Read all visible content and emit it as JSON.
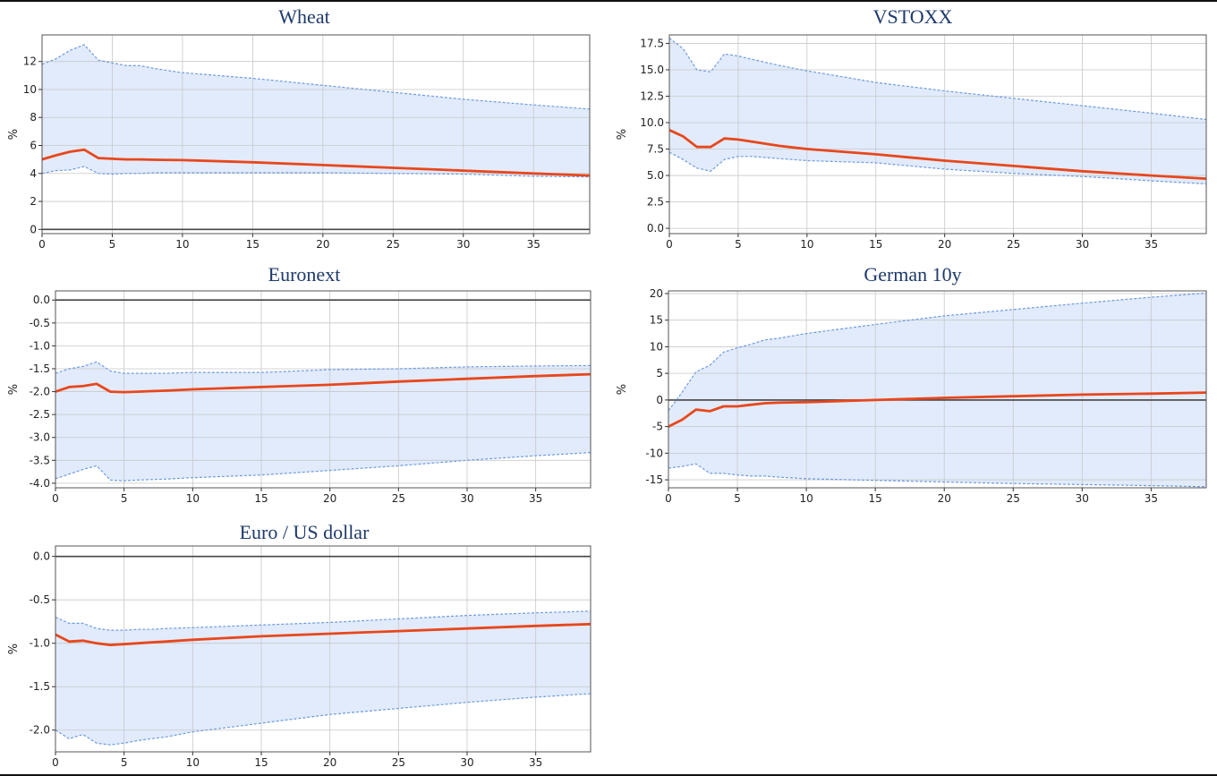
{
  "colors": {
    "line": "#e8471c",
    "band_fill": "#dce8fb",
    "band_edge": "#6f9be0",
    "grid": "#c8c8c8",
    "zero": "#444444",
    "title": "#1f3a6b"
  },
  "chart_data": [
    {
      "type": "area",
      "title": "Wheat",
      "ylabel": "%",
      "xlim": [
        0,
        39
      ],
      "ylim": [
        -0.3,
        13.9
      ],
      "xticks": [
        0,
        5,
        10,
        15,
        20,
        25,
        30,
        35
      ],
      "yticks": [
        0,
        2,
        4,
        6,
        8,
        10,
        12
      ],
      "ytick_labels": [
        "0",
        "2",
        "4",
        "6",
        "8",
        "10",
        "12"
      ],
      "zero_line": true,
      "grid": true,
      "x": [
        0,
        1,
        2,
        3,
        4,
        5,
        6,
        7,
        8,
        10,
        15,
        20,
        25,
        30,
        35,
        39
      ],
      "series": [
        {
          "role": "upper",
          "values": [
            11.8,
            12.2,
            12.8,
            13.2,
            12.1,
            11.9,
            11.7,
            11.7,
            11.5,
            11.2,
            10.8,
            10.3,
            9.8,
            9.3,
            8.9,
            8.6
          ]
        },
        {
          "role": "median",
          "values": [
            5.0,
            5.3,
            5.55,
            5.7,
            5.1,
            5.05,
            5.0,
            5.0,
            4.98,
            4.95,
            4.8,
            4.6,
            4.4,
            4.2,
            4.0,
            3.85
          ]
        },
        {
          "role": "lower",
          "values": [
            4.0,
            4.2,
            4.25,
            4.5,
            4.0,
            3.95,
            4.0,
            4.0,
            4.05,
            4.05,
            4.05,
            4.05,
            4.0,
            3.95,
            3.8,
            3.75
          ]
        }
      ]
    },
    {
      "type": "area",
      "title": "VSTOXX",
      "ylabel": "%",
      "xlim": [
        0,
        39
      ],
      "ylim": [
        -0.5,
        18.3
      ],
      "xticks": [
        0,
        5,
        10,
        15,
        20,
        25,
        30,
        35
      ],
      "yticks": [
        0,
        2.5,
        5,
        7.5,
        10,
        12.5,
        15,
        17.5
      ],
      "ytick_labels": [
        "0.0",
        "2.5",
        "5.0",
        "7.5",
        "10.0",
        "12.5",
        "15.0",
        "17.5"
      ],
      "zero_line": false,
      "grid": true,
      "x": [
        0,
        1,
        2,
        3,
        4,
        5,
        6,
        7,
        8,
        10,
        15,
        20,
        25,
        30,
        35,
        39
      ],
      "series": [
        {
          "role": "upper",
          "values": [
            18.0,
            17.0,
            15.0,
            14.8,
            16.5,
            16.3,
            16.0,
            15.7,
            15.4,
            14.9,
            13.8,
            13.0,
            12.3,
            11.6,
            10.9,
            10.3
          ]
        },
        {
          "role": "median",
          "values": [
            9.3,
            8.7,
            7.7,
            7.7,
            8.5,
            8.4,
            8.2,
            8.0,
            7.8,
            7.5,
            7.0,
            6.4,
            5.9,
            5.4,
            5.0,
            4.7
          ]
        },
        {
          "role": "lower",
          "values": [
            7.2,
            6.5,
            5.7,
            5.4,
            6.5,
            6.8,
            6.8,
            6.7,
            6.6,
            6.4,
            6.2,
            5.6,
            5.2,
            4.9,
            4.5,
            4.2
          ]
        }
      ]
    },
    {
      "type": "area",
      "title": "Euronext",
      "ylabel": "%",
      "xlim": [
        0,
        39
      ],
      "ylim": [
        -4.1,
        0.2
      ],
      "xticks": [
        0,
        5,
        10,
        15,
        20,
        25,
        30,
        35
      ],
      "yticks": [
        0,
        -0.5,
        -1,
        -1.5,
        -2,
        -2.5,
        -3,
        -3.5,
        -4
      ],
      "ytick_labels": [
        "0.0",
        "-0.5",
        "-1.0",
        "-1.5",
        "-2.0",
        "-2.5",
        "-3.0",
        "-3.5",
        "-4.0"
      ],
      "zero_line": true,
      "grid": true,
      "x": [
        0,
        1,
        2,
        3,
        4,
        5,
        6,
        7,
        8,
        10,
        15,
        20,
        25,
        30,
        35,
        39
      ],
      "series": [
        {
          "role": "upper",
          "values": [
            -1.6,
            -1.5,
            -1.45,
            -1.35,
            -1.55,
            -1.6,
            -1.6,
            -1.6,
            -1.6,
            -1.58,
            -1.58,
            -1.52,
            -1.5,
            -1.46,
            -1.44,
            -1.43
          ]
        },
        {
          "role": "median",
          "values": [
            -2.0,
            -1.9,
            -1.88,
            -1.83,
            -2.0,
            -2.01,
            -2.0,
            -1.99,
            -1.98,
            -1.95,
            -1.9,
            -1.85,
            -1.78,
            -1.72,
            -1.66,
            -1.62
          ]
        },
        {
          "role": "lower",
          "values": [
            -3.9,
            -3.8,
            -3.7,
            -3.62,
            -3.93,
            -3.95,
            -3.93,
            -3.92,
            -3.91,
            -3.88,
            -3.82,
            -3.72,
            -3.62,
            -3.5,
            -3.4,
            -3.33
          ]
        }
      ]
    },
    {
      "type": "area",
      "title": "German 10y",
      "ylabel": "%",
      "xlim": [
        0,
        39
      ],
      "ylim": [
        -16.5,
        20.5
      ],
      "xticks": [
        0,
        5,
        10,
        15,
        20,
        25,
        30,
        35
      ],
      "yticks": [
        -15,
        -10,
        -5,
        0,
        5,
        10,
        15,
        20
      ],
      "ytick_labels": [
        "-15",
        "-10",
        "-5",
        "0",
        "5",
        "10",
        "15",
        "20"
      ],
      "zero_line": true,
      "grid": true,
      "x": [
        0,
        1,
        2,
        3,
        4,
        5,
        6,
        7,
        8,
        10,
        15,
        20,
        25,
        30,
        35,
        39
      ],
      "series": [
        {
          "role": "upper",
          "values": [
            -2.0,
            1.5,
            5.3,
            6.5,
            9.0,
            9.8,
            10.5,
            11.3,
            11.6,
            12.5,
            14.2,
            15.8,
            17.0,
            18.2,
            19.3,
            20.1
          ]
        },
        {
          "role": "median",
          "values": [
            -5.0,
            -3.7,
            -1.8,
            -2.1,
            -1.2,
            -1.2,
            -0.9,
            -0.6,
            -0.5,
            -0.4,
            0.0,
            0.4,
            0.7,
            1.0,
            1.2,
            1.4
          ]
        },
        {
          "role": "lower",
          "values": [
            -12.8,
            -12.5,
            -12.0,
            -13.8,
            -13.8,
            -14.1,
            -14.3,
            -14.3,
            -14.5,
            -14.8,
            -15.1,
            -15.4,
            -15.7,
            -15.9,
            -16.1,
            -16.3
          ]
        }
      ]
    },
    {
      "type": "area",
      "title": "Euro / US dollar",
      "ylabel": "%",
      "xlim": [
        0,
        39
      ],
      "ylim": [
        -2.25,
        0.12
      ],
      "xticks": [
        0,
        5,
        10,
        15,
        20,
        25,
        30,
        35
      ],
      "yticks": [
        0,
        -0.5,
        -1,
        -1.5,
        -2
      ],
      "ytick_labels": [
        "0.0",
        "-0.5",
        "-1.0",
        "-1.5",
        "-2.0"
      ],
      "zero_line": true,
      "grid": true,
      "x": [
        0,
        1,
        2,
        3,
        4,
        5,
        6,
        7,
        8,
        10,
        15,
        20,
        25,
        30,
        35,
        39
      ],
      "series": [
        {
          "role": "upper",
          "values": [
            -0.7,
            -0.77,
            -0.77,
            -0.83,
            -0.85,
            -0.85,
            -0.84,
            -0.84,
            -0.83,
            -0.82,
            -0.79,
            -0.76,
            -0.72,
            -0.68,
            -0.65,
            -0.63
          ]
        },
        {
          "role": "median",
          "values": [
            -0.9,
            -0.98,
            -0.97,
            -1.0,
            -1.02,
            -1.01,
            -1.0,
            -0.99,
            -0.98,
            -0.96,
            -0.92,
            -0.89,
            -0.86,
            -0.83,
            -0.8,
            -0.78
          ]
        },
        {
          "role": "lower",
          "values": [
            -2.0,
            -2.1,
            -2.05,
            -2.15,
            -2.17,
            -2.15,
            -2.12,
            -2.1,
            -2.08,
            -2.02,
            -1.92,
            -1.82,
            -1.75,
            -1.68,
            -1.62,
            -1.58
          ]
        }
      ]
    }
  ]
}
